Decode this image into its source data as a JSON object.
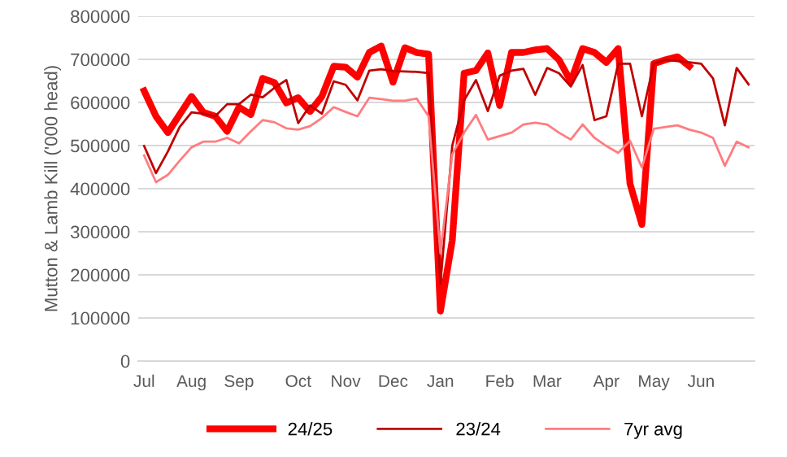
{
  "chart_data": {
    "type": "line",
    "ylabel": "Mutton & Lamb Kill ('000 head)",
    "categories": [
      "Jul",
      null,
      null,
      null,
      "Aug",
      null,
      null,
      null,
      "Sep",
      null,
      null,
      null,
      null,
      "Oct",
      null,
      null,
      null,
      "Nov",
      null,
      null,
      null,
      "Dec",
      null,
      null,
      null,
      "Jan",
      null,
      null,
      null,
      null,
      "Feb",
      null,
      null,
      null,
      "Mar",
      null,
      null,
      null,
      null,
      "Apr",
      null,
      null,
      null,
      "May",
      null,
      null,
      null,
      "Jun",
      null,
      null,
      null,
      null
    ],
    "series": [
      {
        "name": "24/25",
        "color": "#ff0000",
        "values": [
          627000,
          568000,
          530000,
          572000,
          614000,
          577000,
          568000,
          533000,
          589000,
          572000,
          656000,
          646000,
          599000,
          611000,
          579000,
          614000,
          684000,
          682000,
          659000,
          716000,
          731000,
          647000,
          727000,
          716000,
          712000,
          116000,
          280000,
          668000,
          674000,
          715000,
          593000,
          716000,
          716000,
          722000,
          725000,
          699000,
          649000,
          725000,
          716000,
          693000,
          725000,
          411000,
          317000,
          690000,
          699000,
          706000,
          684000,
          null,
          null,
          null,
          null,
          null
        ]
      },
      {
        "name": "23/24",
        "color": "#c00000",
        "values": [
          499000,
          436000,
          486000,
          543000,
          577000,
          574000,
          568000,
          596000,
          596000,
          618000,
          612000,
          634000,
          652000,
          552000,
          593000,
          574000,
          649000,
          641000,
          605000,
          674000,
          677000,
          673000,
          672000,
          671000,
          668000,
          180000,
          500000,
          605000,
          652000,
          580000,
          662000,
          674000,
          678000,
          618000,
          680000,
          668000,
          637000,
          687000,
          559000,
          568000,
          690000,
          690000,
          568000,
          690000,
          699000,
          696000,
          693000,
          690000,
          656000,
          547000,
          680000,
          642000
        ]
      },
      {
        "name": "7yr avg",
        "color": "#ff7c80",
        "values": [
          477000,
          415000,
          432000,
          465000,
          496000,
          509000,
          509000,
          518000,
          505000,
          533000,
          559000,
          554000,
          540000,
          537000,
          545000,
          564000,
          589000,
          578000,
          568000,
          611000,
          608000,
          604000,
          604000,
          609000,
          568000,
          250000,
          480000,
          530000,
          571000,
          514000,
          522000,
          530000,
          549000,
          553000,
          549000,
          530000,
          514000,
          549000,
          518000,
          499000,
          483000,
          511000,
          449000,
          539000,
          543000,
          547000,
          537000,
          530000,
          518000,
          453000,
          509000,
          496000
        ]
      }
    ],
    "ylim": [
      0,
      800000
    ],
    "yticks": [
      0,
      100000,
      200000,
      300000,
      400000,
      500000,
      600000,
      700000,
      800000
    ],
    "grid": "y",
    "legend": "bottom",
    "marker": "none",
    "line_style": "solid"
  }
}
